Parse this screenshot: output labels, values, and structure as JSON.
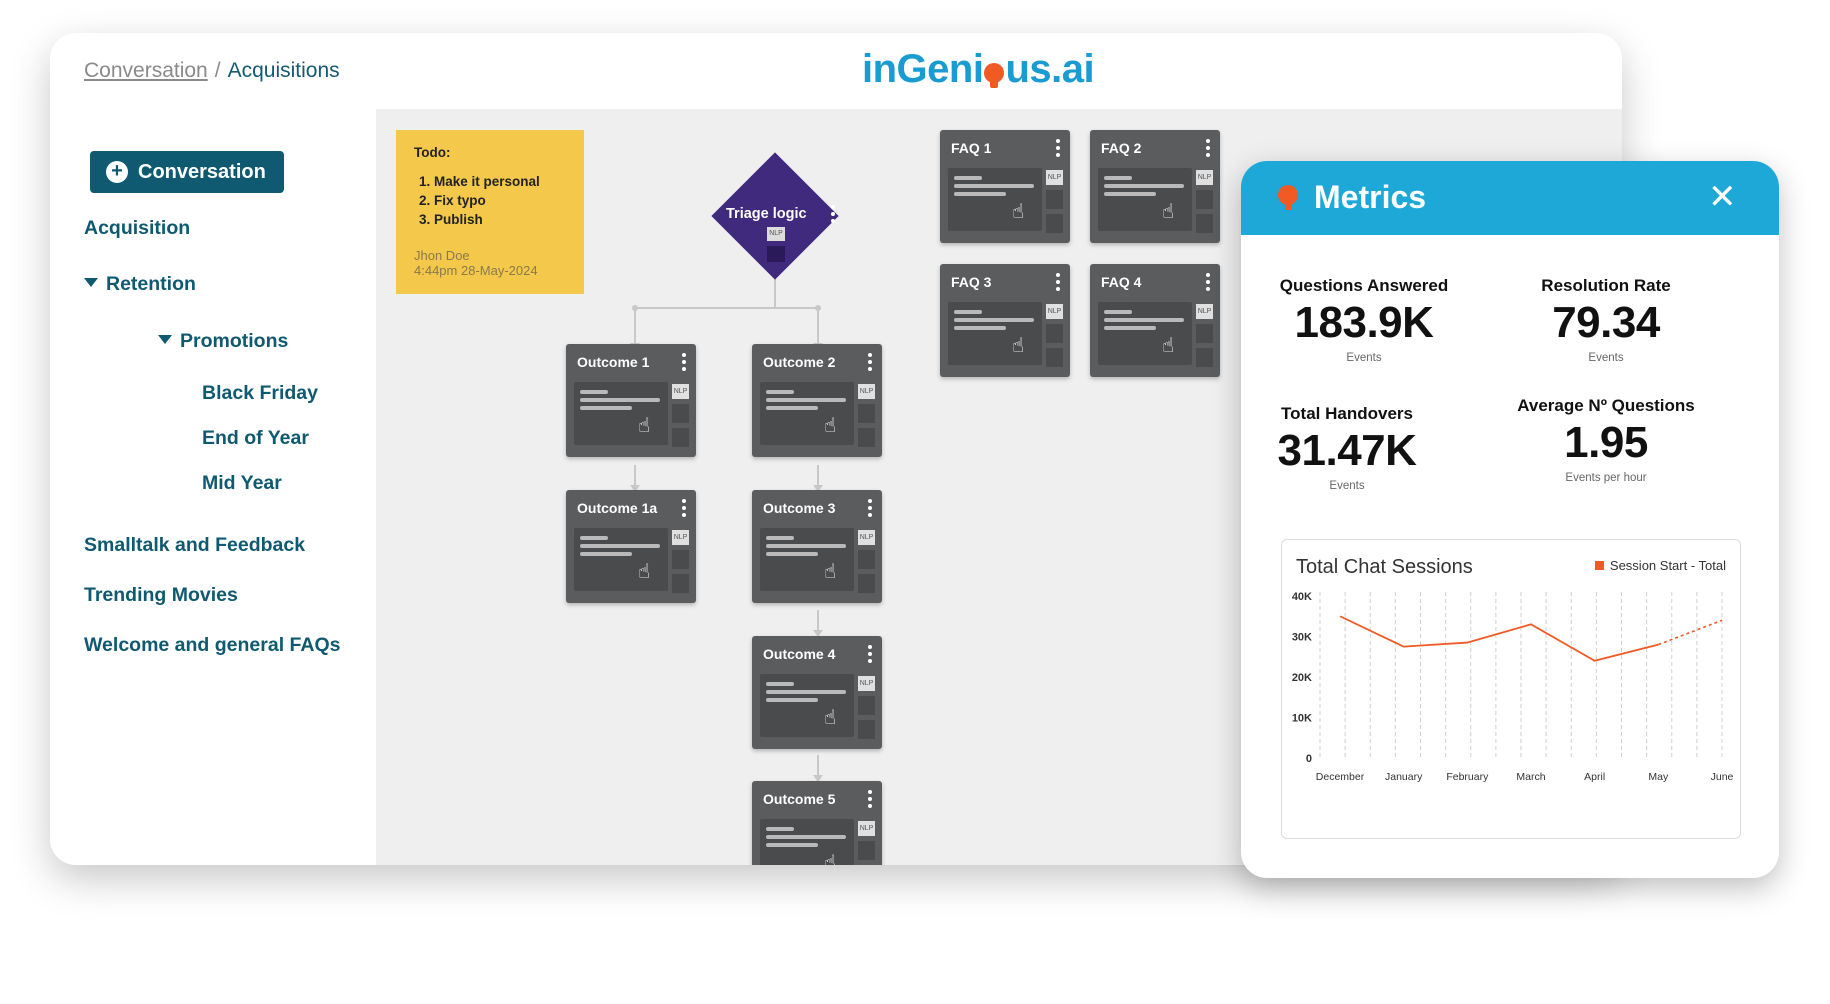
{
  "breadcrumb": {
    "parent": "Conversation",
    "separator": "/",
    "current": "Acquisitions"
  },
  "logo": {
    "part1": "inGeni",
    "part2": "us.ai"
  },
  "sidebar": {
    "add_button": "Conversation",
    "items": [
      {
        "label": "Acquisition"
      },
      {
        "label": "Retention"
      },
      {
        "label": "Promotions"
      },
      {
        "label": "Black Friday"
      },
      {
        "label": "End of Year"
      },
      {
        "label": "Mid Year"
      },
      {
        "label": "Smalltalk and Feedback"
      },
      {
        "label": "Trending Movies"
      },
      {
        "label": "Welcome and general FAQs"
      }
    ]
  },
  "note": {
    "title": "Todo:",
    "items": [
      "Make it personal",
      "Fix typo",
      "Publish"
    ],
    "author": "Jhon Doe",
    "timestamp": "4:44pm 28-May-2024"
  },
  "flow": {
    "decision": {
      "label": "Triage logic",
      "badge": "NLP"
    },
    "nodes": [
      {
        "label": "Outcome 1",
        "badge": "NLP"
      },
      {
        "label": "Outcome 2",
        "badge": "NLP"
      },
      {
        "label": "Outcome 1a",
        "badge": "NLP"
      },
      {
        "label": "Outcome 3",
        "badge": "NLP"
      },
      {
        "label": "Outcome 4",
        "badge": "NLP"
      },
      {
        "label": "Outcome 5",
        "badge": "NLP"
      },
      {
        "label": "FAQ 1",
        "badge": "NLP"
      },
      {
        "label": "FAQ 2",
        "badge": "NLP"
      },
      {
        "label": "FAQ 3",
        "badge": "NLP"
      },
      {
        "label": "FAQ 4",
        "badge": "NLP"
      }
    ]
  },
  "metrics": {
    "title": "Metrics",
    "close": "✕",
    "kpis": [
      {
        "label": "Questions Answered",
        "value": "183.9K",
        "unit": "Events"
      },
      {
        "label": "Resolution Rate",
        "value": "79.34",
        "unit": "Events"
      },
      {
        "label": "Total Handovers",
        "value": "31.47K",
        "unit": "Events"
      },
      {
        "label": "Average Nº Questions",
        "value": "1.95",
        "unit": "Events per hour"
      }
    ]
  },
  "chart_data": {
    "type": "line",
    "title": "Total Chat Sessions",
    "categories": [
      "December",
      "January",
      "February",
      "March",
      "April",
      "May",
      "June"
    ],
    "series": [
      {
        "name": "Session Start - Total",
        "values": [
          35000,
          27500,
          28500,
          33000,
          24000,
          28000,
          34000
        ],
        "color": "#f15a24",
        "dashed_from_index": 5
      }
    ],
    "y_ticks": [
      "0",
      "10K",
      "20K",
      "30K",
      "40K"
    ],
    "ylim": [
      0,
      40000
    ],
    "grid": "vertical dashed",
    "legend_position": "top-right"
  },
  "colors": {
    "brand_blue": "#1ea8d8",
    "brand_orange": "#f15a24",
    "nav_teal": "#0f5a70",
    "note_yellow": "#f3c84b",
    "decision_purple": "#3f2a7e",
    "card_gray": "#5a5c5e"
  }
}
